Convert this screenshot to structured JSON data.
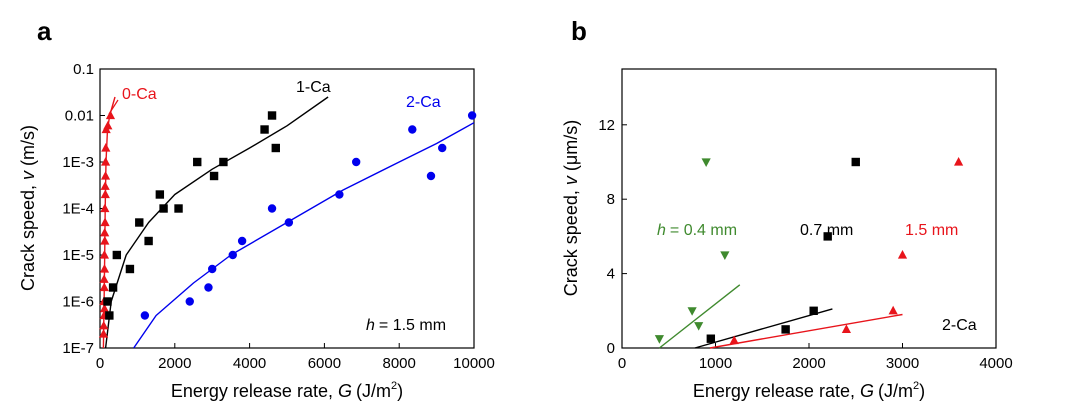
{
  "chart_data": [
    {
      "panel": "a",
      "type": "scatter",
      "xlabel_main": "Energy release rate,",
      "xlabel_sym": "G",
      "xlabel_unit": "(J/m",
      "xlabel_sup": "2",
      "xlabel_close": ")",
      "ylabel_main": "Crack speed,",
      "ylabel_sym": "v",
      "ylabel_unit": "(m/s)",
      "xlim": [
        0,
        10000
      ],
      "y_scale": "log",
      "ylim": [
        1e-07,
        0.1
      ],
      "xticks": [
        0,
        2000,
        4000,
        6000,
        8000,
        10000
      ],
      "xtick_labels": [
        "0",
        "2000",
        "4000",
        "6000",
        "8000",
        "10000"
      ],
      "yticks": [
        1e-07,
        1e-06,
        1e-05,
        0.0001,
        0.001,
        0.01,
        0.1
      ],
      "ytick_labels": [
        "1E-7",
        "1E-6",
        "1E-5",
        "1E-4",
        "1E-3",
        "0.01",
        "0.1"
      ],
      "annotation": {
        "sym": "h",
        "text": "= 1.5 mm"
      },
      "series": [
        {
          "name": "0-Ca",
          "color": "#e8141b",
          "marker": "triangle-up",
          "points": [
            [
              95,
              2e-07
            ],
            [
              100,
              3e-07
            ],
            [
              110,
              5e-07
            ],
            [
              120,
              7e-07
            ],
            [
              105,
              1e-06
            ],
            [
              115,
              2e-06
            ],
            [
              110,
              3e-06
            ],
            [
              120,
              5e-06
            ],
            [
              118,
              1e-05
            ],
            [
              128,
              2e-05
            ],
            [
              125,
              3e-05
            ],
            [
              135,
              5e-05
            ],
            [
              130,
              0.0001
            ],
            [
              142,
              0.0002
            ],
            [
              138,
              0.0003
            ],
            [
              148,
              0.0005
            ],
            [
              150,
              0.001
            ],
            [
              155,
              0.002
            ],
            [
              165,
              0.005
            ],
            [
              210,
              0.006
            ],
            [
              280,
              0.01
            ]
          ],
          "fit": [
            [
              90,
              1e-07
            ],
            [
              110,
              1e-06
            ],
            [
              125,
              1e-05
            ],
            [
              140,
              0.0001
            ],
            [
              160,
              0.001
            ],
            [
              200,
              0.005
            ],
            [
              260,
              0.01
            ],
            [
              400,
              0.025
            ]
          ]
        },
        {
          "name": "1-Ca",
          "color": "#000000",
          "marker": "square",
          "points": [
            [
              250,
              5e-07
            ],
            [
              200,
              1e-06
            ],
            [
              350,
              2e-06
            ],
            [
              450,
              1e-05
            ],
            [
              800,
              5e-06
            ],
            [
              1050,
              5e-05
            ],
            [
              1300,
              2e-05
            ],
            [
              1600,
              0.0002
            ],
            [
              1700,
              0.0001
            ],
            [
              2100,
              0.0001
            ],
            [
              2600,
              0.001
            ],
            [
              3050,
              0.0005
            ],
            [
              3300,
              0.001
            ],
            [
              4400,
              0.005
            ],
            [
              4600,
              0.01
            ],
            [
              4700,
              0.002
            ]
          ],
          "fit": [
            [
              150,
              1e-07
            ],
            [
              300,
              1e-06
            ],
            [
              700,
              1e-05
            ],
            [
              1300,
              5e-05
            ],
            [
              2000,
              0.0002
            ],
            [
              3000,
              0.0007
            ],
            [
              4000,
              0.002
            ],
            [
              5000,
              0.006
            ],
            [
              6100,
              0.025
            ]
          ]
        },
        {
          "name": "2-Ca",
          "color": "#0000ee",
          "marker": "circle",
          "points": [
            [
              1200,
              5e-07
            ],
            [
              2400,
              1e-06
            ],
            [
              2900,
              2e-06
            ],
            [
              3000,
              5e-06
            ],
            [
              3550,
              1e-05
            ],
            [
              3800,
              2e-05
            ],
            [
              4600,
              0.0001
            ],
            [
              5050,
              5e-05
            ],
            [
              6400,
              0.0002
            ],
            [
              6850,
              0.001
            ],
            [
              8350,
              0.005
            ],
            [
              8850,
              0.0005
            ],
            [
              9150,
              0.002
            ],
            [
              9950,
              0.01
            ]
          ]
        }
      ],
      "fit_2ca": [
        [
          900,
          1e-07
        ],
        [
          1500,
          5e-07
        ],
        [
          2500,
          2.5e-06
        ],
        [
          3500,
          1e-05
        ],
        [
          5000,
          5e-05
        ],
        [
          6500,
          0.00025
        ],
        [
          8000,
          0.001
        ],
        [
          9000,
          0.0025
        ],
        [
          10000,
          0.007
        ]
      ],
      "labels": {
        "s0": "0-Ca",
        "s1": "1-Ca",
        "s2": "2-Ca"
      }
    },
    {
      "panel": "b",
      "type": "scatter",
      "xlabel_main": "Energy release rate,",
      "xlabel_sym": "G",
      "xlabel_unit": "(J/m",
      "xlabel_sup": "2",
      "xlabel_close": ")",
      "ylabel_main": "Crack speed,",
      "ylabel_sym": "v",
      "ylabel_unit": "(μm/s)",
      "xlim": [
        0,
        4000
      ],
      "ylim": [
        0,
        15
      ],
      "xticks": [
        0,
        1000,
        2000,
        3000,
        4000
      ],
      "xtick_labels": [
        "0",
        "1000",
        "2000",
        "3000",
        "4000"
      ],
      "yticks": [
        0,
        4,
        8,
        12
      ],
      "ytick_labels": [
        "0",
        "4",
        "8",
        "12"
      ],
      "annotation": "2-Ca",
      "series": [
        {
          "name": "0.4 mm",
          "label_prefix": "h",
          "color": "#3f8a2e",
          "marker": "triangle-down",
          "points": [
            [
              400,
              0.5
            ],
            [
              750,
              2.0
            ],
            [
              820,
              1.2
            ],
            [
              900,
              10.0
            ],
            [
              1100,
              5.0
            ]
          ],
          "fit": [
            [
              400,
              0.0
            ],
            [
              1260,
              3.4
            ]
          ]
        },
        {
          "name": "0.7 mm",
          "color": "#000000",
          "marker": "square",
          "points": [
            [
              950,
              0.5
            ],
            [
              1750,
              1.0
            ],
            [
              2050,
              2.0
            ],
            [
              2200,
              6.0
            ],
            [
              2500,
              10.0
            ]
          ],
          "fit": [
            [
              780,
              0.0
            ],
            [
              2250,
              2.1
            ]
          ]
        },
        {
          "name": "1.5 mm",
          "color": "#e8141b",
          "marker": "triangle-up",
          "points": [
            [
              1200,
              0.4
            ],
            [
              2400,
              1.0
            ],
            [
              2900,
              2.0
            ],
            [
              3000,
              5.0
            ],
            [
              3600,
              10.0
            ]
          ],
          "fit": [
            [
              940,
              0.0
            ],
            [
              3000,
              1.8
            ]
          ]
        }
      ]
    }
  ],
  "panel_letters": [
    "a",
    "b"
  ]
}
